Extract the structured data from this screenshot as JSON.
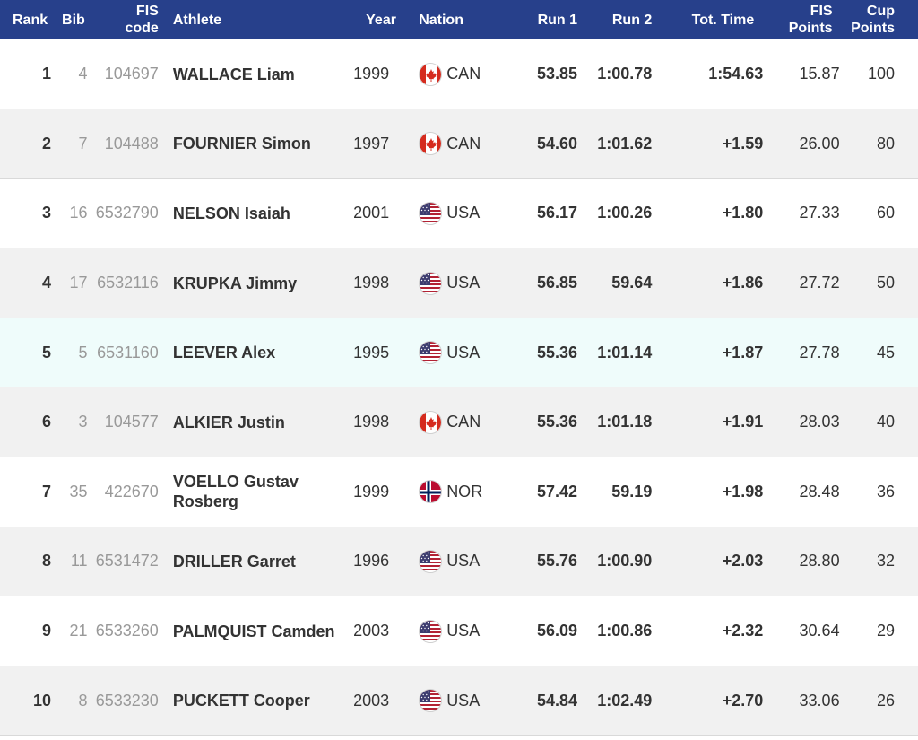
{
  "headers": {
    "rank": "Rank",
    "bib": "Bib",
    "fis_code_1": "FIS",
    "fis_code_2": "code",
    "athlete": "Athlete",
    "year": "Year",
    "nation": "Nation",
    "run1": "Run 1",
    "run2": "Run 2",
    "tot_time": "Tot. Time",
    "fis_points_1": "FIS",
    "fis_points_2": "Points",
    "cup_points_1": "Cup",
    "cup_points_2": "Points"
  },
  "colors": {
    "header_bg": "#27408b",
    "row_alt": "#f1f1f1",
    "row_highlight": "#effcfb"
  },
  "rows": [
    {
      "rank": "1",
      "bib": "4",
      "fis_code": "104697",
      "athlete": "WALLACE Liam",
      "year": "1999",
      "flag": "canada-flag-icon",
      "nation": "CAN",
      "run1": "53.85",
      "run2": "1:00.78",
      "tot_time": "1:54.63",
      "fis_points": "15.87",
      "cup_points": "100"
    },
    {
      "rank": "2",
      "bib": "7",
      "fis_code": "104488",
      "athlete": "FOURNIER Simon",
      "year": "1997",
      "flag": "canada-flag-icon",
      "nation": "CAN",
      "run1": "54.60",
      "run2": "1:01.62",
      "tot_time": "+1.59",
      "fis_points": "26.00",
      "cup_points": "80"
    },
    {
      "rank": "3",
      "bib": "16",
      "fis_code": "6532790",
      "athlete": "NELSON Isaiah",
      "year": "2001",
      "flag": "usa-flag-icon",
      "nation": "USA",
      "run1": "56.17",
      "run2": "1:00.26",
      "tot_time": "+1.80",
      "fis_points": "27.33",
      "cup_points": "60"
    },
    {
      "rank": "4",
      "bib": "17",
      "fis_code": "6532116",
      "athlete": "KRUPKA Jimmy",
      "year": "1998",
      "flag": "usa-flag-icon",
      "nation": "USA",
      "run1": "56.85",
      "run2": "59.64",
      "tot_time": "+1.86",
      "fis_points": "27.72",
      "cup_points": "50"
    },
    {
      "rank": "5",
      "bib": "5",
      "fis_code": "6531160",
      "athlete": "LEEVER Alex",
      "year": "1995",
      "flag": "usa-flag-icon",
      "nation": "USA",
      "run1": "55.36",
      "run2": "1:01.14",
      "tot_time": "+1.87",
      "fis_points": "27.78",
      "cup_points": "45"
    },
    {
      "rank": "6",
      "bib": "3",
      "fis_code": "104577",
      "athlete": "ALKIER Justin",
      "year": "1998",
      "flag": "canada-flag-icon",
      "nation": "CAN",
      "run1": "55.36",
      "run2": "1:01.18",
      "tot_time": "+1.91",
      "fis_points": "28.03",
      "cup_points": "40"
    },
    {
      "rank": "7",
      "bib": "35",
      "fis_code": "422670",
      "athlete": "VOELLO Gustav Rosberg",
      "year": "1999",
      "flag": "norway-flag-icon",
      "nation": "NOR",
      "run1": "57.42",
      "run2": "59.19",
      "tot_time": "+1.98",
      "fis_points": "28.48",
      "cup_points": "36"
    },
    {
      "rank": "8",
      "bib": "11",
      "fis_code": "6531472",
      "athlete": "DRILLER Garret",
      "year": "1996",
      "flag": "usa-flag-icon",
      "nation": "USA",
      "run1": "55.76",
      "run2": "1:00.90",
      "tot_time": "+2.03",
      "fis_points": "28.80",
      "cup_points": "32"
    },
    {
      "rank": "9",
      "bib": "21",
      "fis_code": "6533260",
      "athlete": "PALMQUIST Camden",
      "year": "2003",
      "flag": "usa-flag-icon",
      "nation": "USA",
      "run1": "56.09",
      "run2": "1:00.86",
      "tot_time": "+2.32",
      "fis_points": "30.64",
      "cup_points": "29"
    },
    {
      "rank": "10",
      "bib": "8",
      "fis_code": "6533230",
      "athlete": "PUCKETT Cooper",
      "year": "2003",
      "flag": "usa-flag-icon",
      "nation": "USA",
      "run1": "54.84",
      "run2": "1:02.49",
      "tot_time": "+2.70",
      "fis_points": "33.06",
      "cup_points": "26"
    }
  ]
}
